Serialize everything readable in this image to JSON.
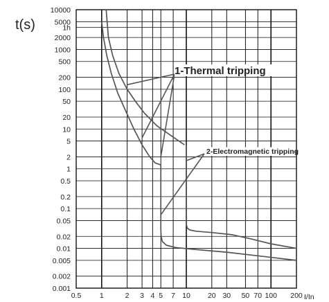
{
  "chart_data": {
    "type": "line",
    "x_scale": "log",
    "y_scale": "log",
    "xlabel": "I/In",
    "ylabel": "t(s)",
    "xlim": [
      0.5,
      200
    ],
    "ylim": [
      0.001,
      10000
    ],
    "x_ticks": [
      {
        "v": 0.5,
        "label": "0.5"
      },
      {
        "v": 1,
        "label": "1"
      },
      {
        "v": 2,
        "label": "2"
      },
      {
        "v": 3,
        "label": "3"
      },
      {
        "v": 4,
        "label": "4"
      },
      {
        "v": 5,
        "label": "5"
      },
      {
        "v": 7,
        "label": "7"
      },
      {
        "v": 10,
        "label": "10"
      },
      {
        "v": 20,
        "label": "20"
      },
      {
        "v": 30,
        "label": "30"
      },
      {
        "v": 50,
        "label": "50"
      },
      {
        "v": 70,
        "label": "70"
      },
      {
        "v": 100,
        "label": "100"
      },
      {
        "v": 200,
        "label": "200"
      }
    ],
    "x_grid": [
      0.5,
      1,
      2,
      3,
      4,
      5,
      7,
      10,
      20,
      30,
      50,
      70,
      100,
      200
    ],
    "y_ticks": [
      {
        "v": 10000,
        "label": "10000"
      },
      {
        "v": 5000,
        "label": "5000"
      },
      {
        "v": 3600,
        "label": "1h"
      },
      {
        "v": 2000,
        "label": "2000"
      },
      {
        "v": 1000,
        "label": "1000"
      },
      {
        "v": 500,
        "label": "500"
      },
      {
        "v": 200,
        "label": "200"
      },
      {
        "v": 100,
        "label": "100"
      },
      {
        "v": 50,
        "label": "50"
      },
      {
        "v": 20,
        "label": "20"
      },
      {
        "v": 10,
        "label": "10"
      },
      {
        "v": 5,
        "label": "5"
      },
      {
        "v": 2,
        "label": "2"
      },
      {
        "v": 1,
        "label": "1"
      },
      {
        "v": 0.5,
        "label": "0.5"
      },
      {
        "v": 0.2,
        "label": "0.2"
      },
      {
        "v": 0.1,
        "label": "0.1"
      },
      {
        "v": 0.05,
        "label": "0.05"
      },
      {
        "v": 0.02,
        "label": "0.02"
      },
      {
        "v": 0.01,
        "label": "0.01"
      },
      {
        "v": 0.005,
        "label": "0.005"
      },
      {
        "v": 0.002,
        "label": "0.002"
      },
      {
        "v": 0.001,
        "label": "0.001"
      }
    ],
    "y_grid": [
      10000,
      5000,
      3600,
      2000,
      1000,
      500,
      200,
      100,
      50,
      20,
      10,
      5,
      2,
      1,
      0.5,
      0.2,
      0.1,
      0.05,
      0.02,
      0.01,
      0.005,
      0.002,
      0.001
    ],
    "series": [
      {
        "role": "upper-envelope",
        "points": [
          [
            1.13,
            10000
          ],
          [
            1.2,
            2000
          ],
          [
            1.35,
            700
          ],
          [
            1.6,
            250
          ],
          [
            2,
            100
          ],
          [
            2.5,
            50
          ],
          [
            3.2,
            25
          ],
          [
            4.5,
            12
          ],
          [
            6.5,
            7
          ],
          [
            9.5,
            4
          ]
        ]
      },
      {
        "role": "lower-envelope",
        "points": [
          [
            1.0,
            5000
          ],
          [
            1.05,
            2000
          ],
          [
            1.15,
            700
          ],
          [
            1.3,
            250
          ],
          [
            1.55,
            80
          ],
          [
            1.9,
            30
          ],
          [
            2.4,
            10
          ],
          [
            3,
            4
          ],
          [
            3.7,
            2
          ],
          [
            4.3,
            1.4
          ],
          [
            5,
            1.25
          ],
          [
            5,
            0.12
          ],
          [
            5,
            0.03
          ],
          [
            5.05,
            0.02
          ],
          [
            5.2,
            0.015
          ],
          [
            5.8,
            0.012
          ],
          [
            7.5,
            0.0105
          ],
          [
            12,
            0.0095
          ],
          [
            30,
            0.008
          ],
          [
            70,
            0.0065
          ],
          [
            200,
            0.005
          ]
        ]
      },
      {
        "role": "electromagnetic-upper",
        "points": [
          [
            10,
            4
          ],
          [
            10,
            2
          ],
          [
            10,
            0.5
          ],
          [
            10,
            0.1
          ],
          [
            10,
            0.04
          ],
          [
            10.3,
            0.032
          ],
          [
            11,
            0.029
          ],
          [
            13,
            0.027
          ],
          [
            20,
            0.025
          ],
          [
            35,
            0.022
          ],
          [
            60,
            0.017
          ],
          [
            100,
            0.013
          ],
          [
            200,
            0.01
          ]
        ]
      }
    ],
    "annotations": [
      {
        "text": "1-Thermal tripping",
        "leaders_to": [
          [
            2,
            130
          ],
          [
            3,
            6
          ],
          [
            5,
            2
          ]
        ]
      },
      {
        "text": "2-Electromagnetic tripping",
        "leaders_to": [
          [
            10,
            1.6
          ],
          [
            5,
            0.07
          ]
        ]
      }
    ]
  }
}
